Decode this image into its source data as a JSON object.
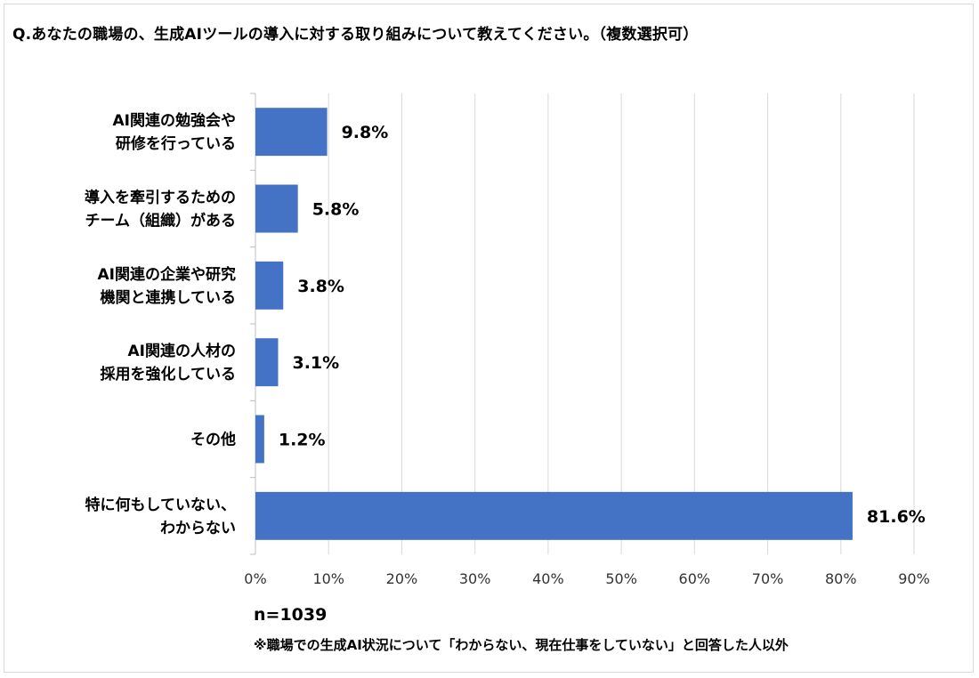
{
  "title": "Q.あなたの職場の、生成AIツールの導入に対する取り組みについて教えてください。（複数選択可）",
  "sample_size": "n=1039",
  "footnote": "※職場での生成AI状況について「わからない、現在仕事をしていない」と回答した人以外",
  "colors": {
    "bar": "#4472c4",
    "grid": "#d9d9d9",
    "axis": "#bfbfbf"
  },
  "chart_data": {
    "type": "bar",
    "orientation": "horizontal",
    "categories": [
      [
        "AI関連の勉強会や",
        "研修を行っている"
      ],
      [
        "導入を牽引するための",
        "チーム（組織）がある"
      ],
      [
        "AI関連の企業や研究",
        "機関と連携している"
      ],
      [
        "AI関連の人材の",
        "採用を強化している"
      ],
      [
        "その他"
      ],
      [
        "特に何もしていない、",
        "わからない"
      ]
    ],
    "values": [
      9.8,
      5.8,
      3.8,
      3.1,
      1.2,
      81.6
    ],
    "data_labels": [
      "9.8%",
      "5.8%",
      "3.8%",
      "3.1%",
      "1.2%",
      "81.6%"
    ],
    "xlim": [
      0,
      90
    ],
    "xticks": [
      0,
      10,
      20,
      30,
      40,
      50,
      60,
      70,
      80,
      90
    ],
    "xtick_labels": [
      "0%",
      "10%",
      "20%",
      "30%",
      "40%",
      "50%",
      "60%",
      "70%",
      "80%",
      "90%"
    ],
    "grid": true,
    "legend": "none"
  }
}
